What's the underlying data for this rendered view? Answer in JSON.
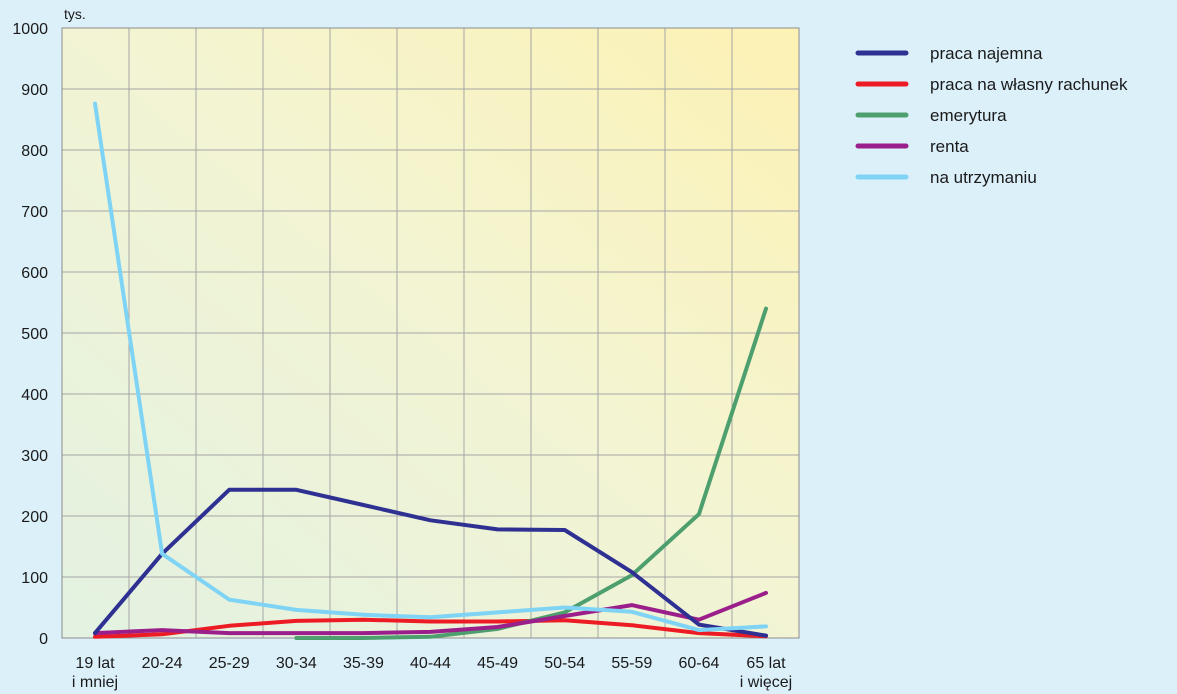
{
  "chart_data": {
    "type": "line",
    "unit_label": "tys.",
    "categories": [
      [
        "19 lat",
        "i mniej"
      ],
      [
        "20-24"
      ],
      [
        "25-29"
      ],
      [
        "30-34"
      ],
      [
        "35-39"
      ],
      [
        "40-44"
      ],
      [
        "45-49"
      ],
      [
        "50-54"
      ],
      [
        "55-59"
      ],
      [
        "60-64"
      ],
      [
        "65 lat",
        "i więcej"
      ]
    ],
    "ylim": [
      0,
      1000
    ],
    "yticks": [
      0,
      100,
      200,
      300,
      400,
      500,
      600,
      700,
      800,
      900,
      1000
    ],
    "grid": true,
    "legend_position": "right",
    "series": [
      {
        "name": "praca najemna",
        "color": "#2e3192",
        "values": [
          8,
          138,
          243,
          243,
          218,
          193,
          178,
          177,
          108,
          22,
          4
        ]
      },
      {
        "name": "praca na własny rachunek",
        "color": "#ed1c24",
        "values": [
          2,
          6,
          20,
          28,
          30,
          27,
          27,
          29,
          21,
          8,
          3
        ]
      },
      {
        "name": "emerytura",
        "color": "#4d9f6e",
        "values": [
          null,
          null,
          null,
          0,
          0,
          2,
          15,
          42,
          103,
          203,
          540
        ]
      },
      {
        "name": "renta",
        "color": "#9b1f8a",
        "values": [
          8,
          13,
          8,
          8,
          8,
          10,
          18,
          36,
          54,
          30,
          74
        ]
      },
      {
        "name": "na utrzymaniu",
        "color": "#7fd4f5",
        "values": [
          876,
          138,
          63,
          46,
          38,
          34,
          42,
          50,
          43,
          13,
          19
        ]
      }
    ]
  }
}
